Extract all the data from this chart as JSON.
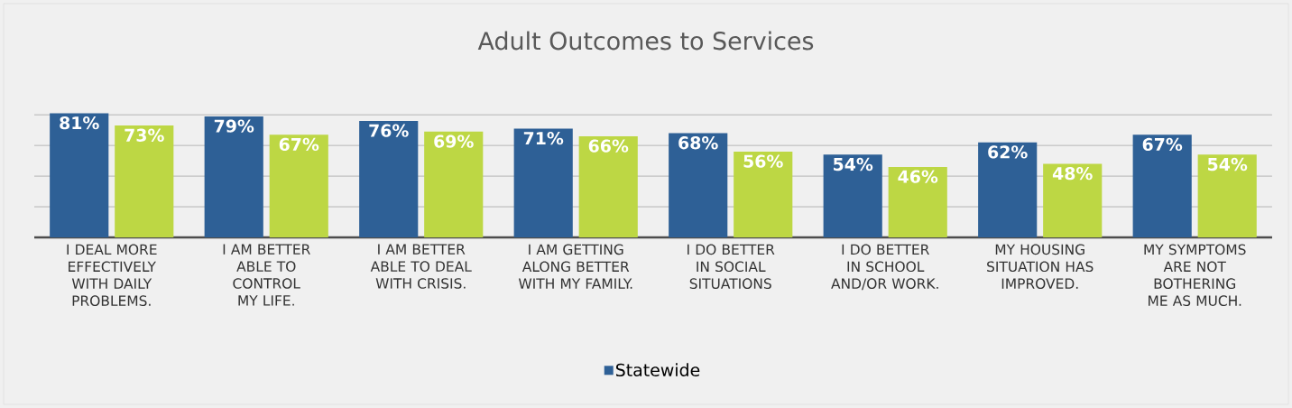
{
  "chart_data": {
    "type": "bar",
    "title": "Adult Outcomes to Services",
    "categories": [
      "I DEAL MORE EFFECTIVELY WITH DAILY PROBLEMS.",
      "I AM BETTER ABLE TO CONTROL MY LIFE.",
      "I AM BETTER ABLE TO DEAL WITH CRISIS.",
      "I AM GETTING ALONG BETTER WITH MY FAMILY.",
      "I DO BETTER IN SOCIAL SITUATIONS",
      "I DO BETTER IN SCHOOL AND/OR WORK.",
      "MY HOUSING SITUATION HAS IMPROVED.",
      "MY SYMPTOMS ARE NOT BOTHERING ME AS MUCH."
    ],
    "series": [
      {
        "name": "Statewide",
        "color": "#2e6096",
        "values": [
          81,
          79,
          76,
          71,
          68,
          54,
          62,
          67
        ],
        "value_labels": [
          "81%",
          "79%",
          "76%",
          "71%",
          "68%",
          "54%",
          "62%",
          "67%"
        ]
      },
      {
        "color": "#bdd744",
        "values": [
          73,
          67,
          69,
          66,
          56,
          46,
          48,
          54
        ],
        "value_labels": [
          "73%",
          "67%",
          "69%",
          "66%",
          "56%",
          "46%",
          "48%",
          "54%"
        ]
      }
    ],
    "grid": "y",
    "legend": "bottom",
    "tick_labels": "x"
  }
}
